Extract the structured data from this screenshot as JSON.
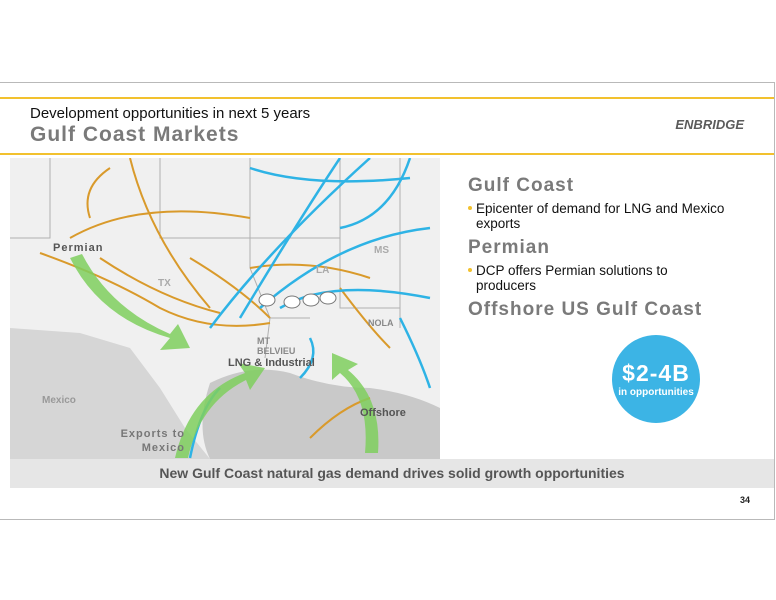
{
  "header": {
    "subtitle": "Development opportunities in next 5 years",
    "title": "Gulf Coast Markets"
  },
  "logo": "ENBRIDGE",
  "map": {
    "labels": {
      "permian": "Permian",
      "tx": "TX",
      "la": "LA",
      "ms": "MS",
      "nola": "NOLA",
      "mt_belvieu": [
        "MT",
        "BELVIEU"
      ],
      "lng": "LNG & Industrial",
      "offshore": "Offshore",
      "mexico": "Mexico",
      "exports": [
        "Exports to",
        "Mexico"
      ]
    }
  },
  "panel": {
    "sections": [
      {
        "heading": "Gulf Coast",
        "bullets": [
          "Epicenter of demand for LNG and Mexico exports"
        ]
      },
      {
        "heading": "Permian",
        "bullets": [
          "DCP offers Permian solutions to producers"
        ]
      },
      {
        "heading": "Offshore US Gulf Coast",
        "bullets": []
      }
    ]
  },
  "callout": {
    "value": "$2-4B",
    "caption": "in opportunities"
  },
  "footer": "New Gulf Coast natural gas demand drives solid growth opportunities",
  "page_number": "34"
}
